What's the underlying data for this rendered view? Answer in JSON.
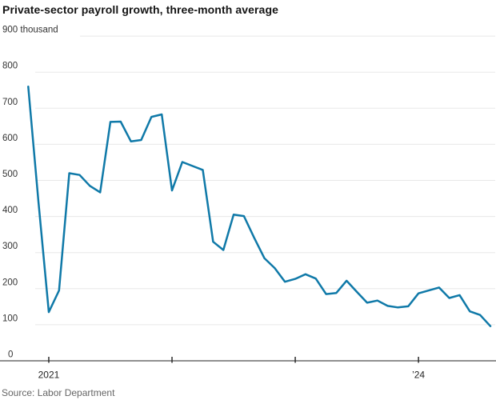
{
  "chart": {
    "title": "Private-sector payroll growth, three-month average",
    "source": "Source: Labor Department"
  },
  "chart_data": {
    "type": "line",
    "title": "Private-sector payroll growth, three-month average",
    "unit": "thousand",
    "source": "Source: Labor Department",
    "grid": true,
    "legend": "none",
    "line_color": "#0f79a8",
    "grid_color": "#e8e8e8",
    "axis_color": "#909090",
    "tick_color": "#2b2b2b",
    "label_color": "#333333",
    "ylim": [
      0,
      900
    ],
    "y_axis": {
      "ticks": [
        {
          "value": 0,
          "label": "0"
        },
        {
          "value": 100,
          "label": "100"
        },
        {
          "value": 200,
          "label": "200"
        },
        {
          "value": 300,
          "label": "300"
        },
        {
          "value": 400,
          "label": "400"
        },
        {
          "value": 500,
          "label": "500"
        },
        {
          "value": 600,
          "label": "600"
        },
        {
          "value": 700,
          "label": "700"
        },
        {
          "value": 800,
          "label": "800"
        },
        {
          "value": 900,
          "label": "900 thousand"
        }
      ]
    },
    "x_axis": {
      "ticks": [
        {
          "month_index": 2,
          "label": "2021"
        },
        {
          "month_index": 14,
          "label": ""
        },
        {
          "month_index": 26,
          "label": ""
        },
        {
          "month_index": 38,
          "label": "’24"
        }
      ]
    },
    "x": [
      "Nov 2020",
      "Dec 2020",
      "Jan 2021",
      "Feb 2021",
      "Mar 2021",
      "Apr 2021",
      "May 2021",
      "Jun 2021",
      "Jul 2021",
      "Aug 2021",
      "Sep 2021",
      "Oct 2021",
      "Nov 2021",
      "Dec 2021",
      "Jan 2022",
      "Feb 2022",
      "Mar 2022",
      "Apr 2022",
      "May 2022",
      "Jun 2022",
      "Jul 2022",
      "Aug 2022",
      "Sep 2022",
      "Oct 2022",
      "Nov 2022",
      "Dec 2022",
      "Jan 2023",
      "Feb 2023",
      "Mar 2023",
      "Apr 2023",
      "May 2023",
      "Jun 2023",
      "Jul 2023",
      "Aug 2023",
      "Sep 2023",
      "Oct 2023",
      "Nov 2023",
      "Dec 2023",
      "Jan 2024",
      "Feb 2024",
      "Mar 2024",
      "Apr 2024",
      "May 2024",
      "Jun 2024",
      "Jul 2024",
      "Aug 2024"
    ],
    "series": [
      {
        "name": "Private-sector payroll growth, three-month average (thousands)",
        "values": [
          760,
          440,
          135,
          195,
          520,
          515,
          485,
          467,
          662,
          663,
          608,
          612,
          676,
          683,
          472,
          551,
          540,
          529,
          330,
          307,
          405,
          401,
          341,
          284,
          257,
          219,
          227,
          240,
          228,
          185,
          188,
          222,
          191,
          161,
          167,
          152,
          148,
          151,
          187,
          195,
          203,
          174,
          182,
          137,
          127,
          96
        ]
      }
    ]
  }
}
